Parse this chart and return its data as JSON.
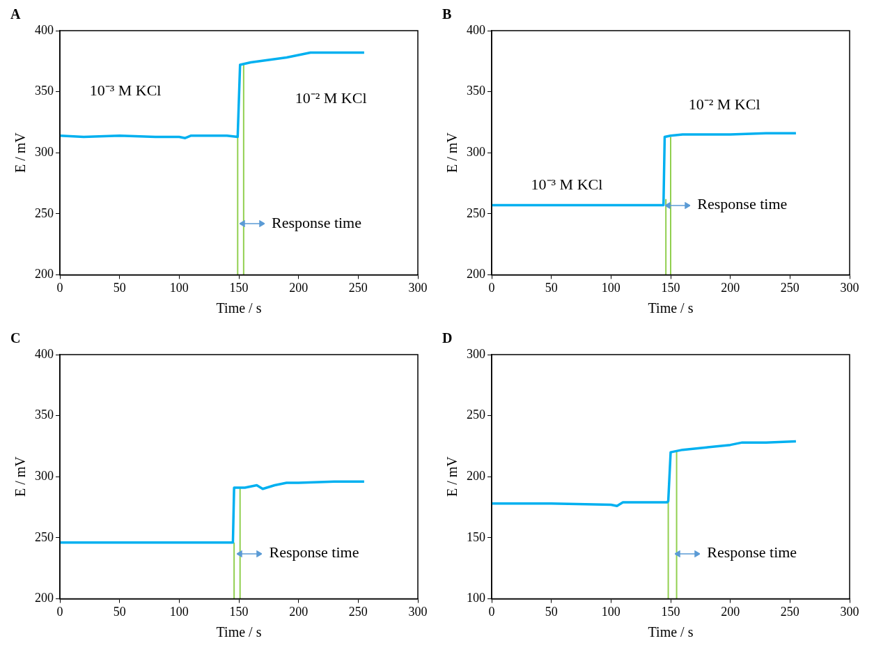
{
  "chart_data": [
    {
      "type": "line",
      "title": "A",
      "xlabel": "Time / s",
      "ylabel": "E / mV",
      "xlim": [
        0,
        300
      ],
      "xticks": [
        0,
        50,
        100,
        150,
        200,
        250,
        300
      ],
      "ylim": [
        200,
        400
      ],
      "yticks": [
        200,
        250,
        300,
        350,
        400
      ],
      "grid": false,
      "legend": false,
      "marker": "none",
      "series": [
        {
          "color": "#00b0f0",
          "x": [
            0,
            20,
            50,
            80,
            100,
            105,
            110,
            140,
            149,
            151,
            160,
            175,
            190,
            200,
            210,
            230,
            255
          ],
          "values": [
            314,
            313,
            314,
            313,
            313,
            312,
            314,
            314,
            313,
            372,
            374,
            376,
            378,
            380,
            382,
            382,
            382
          ]
        },
        {
          "color": "#92d050",
          "x": [
            149,
            149
          ],
          "values": [
            200,
            314
          ]
        },
        {
          "color": "#92d050",
          "x": [
            154,
            154
          ],
          "values": [
            200,
            373
          ]
        }
      ],
      "annotations": [
        "10⁻³ M KCl",
        "10⁻² M KCl",
        "Response time"
      ]
    },
    {
      "type": "line",
      "title": "B",
      "xlabel": "Time / s",
      "ylabel": "E / mV",
      "xlim": [
        0,
        300
      ],
      "xticks": [
        0,
        50,
        100,
        150,
        200,
        250,
        300
      ],
      "ylim": [
        200,
        400
      ],
      "yticks": [
        200,
        250,
        300,
        350,
        400
      ],
      "grid": false,
      "legend": false,
      "marker": "none",
      "series": [
        {
          "color": "#00b0f0",
          "x": [
            0,
            50,
            100,
            144,
            145,
            150,
            160,
            200,
            230,
            255
          ],
          "values": [
            257,
            257,
            257,
            257,
            313,
            314,
            315,
            315,
            316,
            316
          ]
        },
        {
          "color": "#92d050",
          "x": [
            146,
            146
          ],
          "values": [
            200,
            262
          ]
        },
        {
          "color": "#92d050",
          "x": [
            150,
            150
          ],
          "values": [
            200,
            313
          ]
        }
      ],
      "annotations": [
        "10⁻³ M KCl",
        "10⁻² M KCl",
        "Response time"
      ]
    },
    {
      "type": "line",
      "title": "C",
      "xlabel": "Time / s",
      "ylabel": "E / mV",
      "xlim": [
        0,
        300
      ],
      "xticks": [
        0,
        50,
        100,
        150,
        200,
        250,
        300
      ],
      "ylim": [
        200,
        400
      ],
      "yticks": [
        200,
        250,
        300,
        350,
        400
      ],
      "grid": false,
      "legend": false,
      "marker": "none",
      "series": [
        {
          "color": "#00b0f0",
          "x": [
            0,
            50,
            100,
            145,
            146,
            155,
            165,
            170,
            180,
            190,
            200,
            230,
            255
          ],
          "values": [
            246,
            246,
            246,
            246,
            291,
            291,
            293,
            290,
            293,
            295,
            295,
            296,
            296
          ]
        },
        {
          "color": "#92d050",
          "x": [
            146,
            146
          ],
          "values": [
            200,
            246
          ]
        },
        {
          "color": "#92d050",
          "x": [
            151,
            151
          ],
          "values": [
            200,
            291
          ]
        }
      ],
      "annotations": [
        "Response time"
      ]
    },
    {
      "type": "line",
      "title": "D",
      "xlabel": "Time / s",
      "ylabel": "E / mV",
      "xlim": [
        0,
        300
      ],
      "xticks": [
        0,
        50,
        100,
        150,
        200,
        250,
        300
      ],
      "ylim": [
        100,
        300
      ],
      "yticks": [
        100,
        150,
        200,
        250,
        300
      ],
      "grid": false,
      "legend": false,
      "marker": "none",
      "series": [
        {
          "color": "#00b0f0",
          "x": [
            0,
            50,
            100,
            105,
            110,
            147,
            148,
            150,
            160,
            180,
            200,
            210,
            230,
            255
          ],
          "values": [
            178,
            178,
            177,
            176,
            179,
            179,
            180,
            220,
            222,
            224,
            226,
            228,
            228,
            229
          ]
        },
        {
          "color": "#92d050",
          "x": [
            148,
            148
          ],
          "values": [
            100,
            180
          ]
        },
        {
          "color": "#92d050",
          "x": [
            155,
            155
          ],
          "values": [
            100,
            221
          ]
        }
      ],
      "annotations": [
        "Response time"
      ]
    }
  ]
}
